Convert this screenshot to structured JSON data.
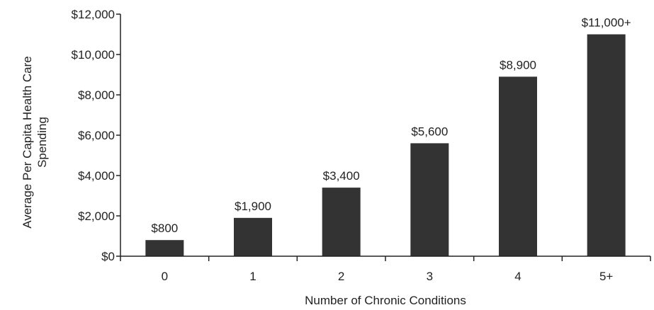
{
  "chart_data": {
    "type": "bar",
    "title": "",
    "xlabel": "Number of Chronic Conditions",
    "ylabel_lines": [
      "Average Per Capita Health Care",
      "Spending"
    ],
    "categories": [
      "0",
      "1",
      "2",
      "3",
      "4",
      "5+"
    ],
    "values": [
      800,
      1900,
      3400,
      5600,
      8900,
      11000
    ],
    "data_labels": [
      "$800",
      "$1,900",
      "$3,400",
      "$5,600",
      "$8,900",
      "$11,000+"
    ],
    "ylim": [
      0,
      12000
    ],
    "yticks": [
      0,
      2000,
      4000,
      6000,
      8000,
      10000,
      12000
    ],
    "ytick_labels": [
      "$0",
      "$2,000",
      "$4,000",
      "$6,000",
      "$8,000",
      "$10,000",
      "$12,000"
    ],
    "grid": false,
    "legend": "none",
    "bar_color": "#333333"
  }
}
